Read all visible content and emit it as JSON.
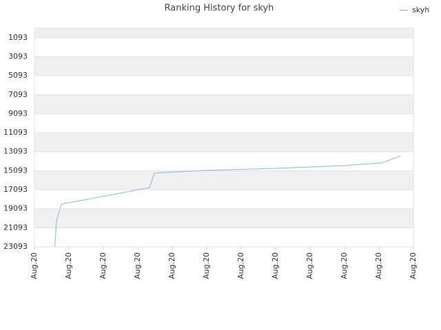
{
  "chart_data": {
    "type": "line",
    "title": "Ranking History for skyh",
    "x": [
      0.59,
      0.64,
      0.78,
      3.34,
      3.48,
      3.76,
      5.0,
      7.0,
      9.0,
      10.08,
      10.62
    ],
    "series": [
      {
        "name": "skyh",
        "color": "#90c4ec",
        "values": [
          23093,
          20340,
          18604,
          16867,
          15348,
          15276,
          15058,
          14842,
          14552,
          14262,
          13539
        ]
      }
    ],
    "ylim": [
      23093,
      93
    ],
    "yticks": [
      1093,
      3093,
      5093,
      7093,
      9093,
      11093,
      13093,
      15093,
      17093,
      19093,
      21093,
      23093
    ],
    "xlim": [
      0,
      11
    ],
    "xticks": [
      {
        "value": 0,
        "label": "Aug.20"
      },
      {
        "value": 1,
        "label": "Aug.20"
      },
      {
        "value": 2,
        "label": "Aug.20"
      },
      {
        "value": 3,
        "label": "Aug.20"
      },
      {
        "value": 4,
        "label": "Aug.20"
      },
      {
        "value": 5,
        "label": "Aug.20"
      },
      {
        "value": 6,
        "label": "Aug.20"
      },
      {
        "value": 7,
        "label": "Aug.20"
      },
      {
        "value": 8,
        "label": "Aug.20"
      },
      {
        "value": 9,
        "label": "Aug.20"
      },
      {
        "value": 10,
        "label": "Aug.20"
      },
      {
        "value": 11,
        "label": "Aug.20"
      }
    ],
    "grid": true,
    "legend": "top-right"
  }
}
